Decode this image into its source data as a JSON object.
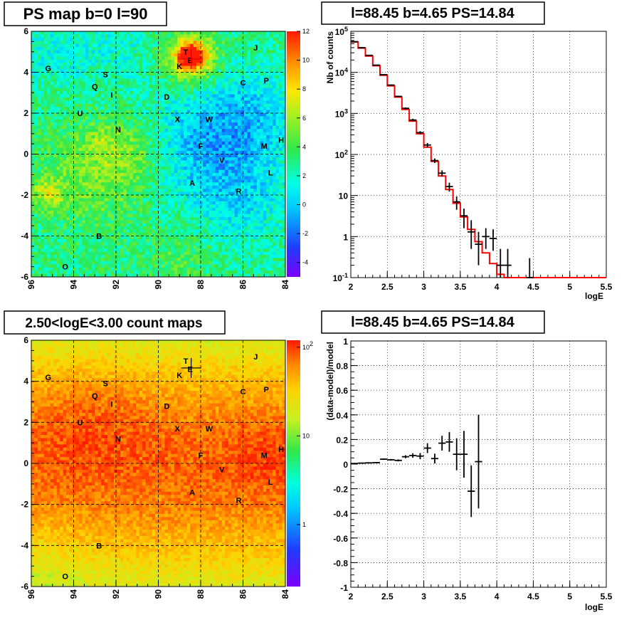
{
  "chart_data": [
    {
      "id": "ps_map",
      "type": "heatmap",
      "title": "PS map b=0 l=90",
      "x_ticks": [
        "96",
        "94",
        "92",
        "90",
        "88",
        "86",
        "84"
      ],
      "y_ticks": [
        "6",
        "4",
        "2",
        "0",
        "-2",
        "-4",
        "-6"
      ],
      "xlim": [
        96,
        84
      ],
      "ylim": [
        -6,
        6
      ],
      "z_ticks": [
        "12",
        "10",
        "8",
        "6",
        "4",
        "2",
        "0",
        "-2",
        "-4"
      ],
      "zlim": [
        -5,
        12
      ],
      "grid": true,
      "marker": {
        "l": 88.45,
        "b": 4.65
      },
      "sources": [
        {
          "name": "T",
          "l": 88.7,
          "b": 5.0
        },
        {
          "name": "E",
          "l": 88.5,
          "b": 4.6
        },
        {
          "name": "J",
          "l": 85.4,
          "b": 5.2
        },
        {
          "name": "K",
          "l": 89.0,
          "b": 4.3
        },
        {
          "name": "G",
          "l": 95.2,
          "b": 4.2
        },
        {
          "name": "S",
          "l": 92.5,
          "b": 3.9
        },
        {
          "name": "C",
          "l": 86.0,
          "b": 3.5
        },
        {
          "name": "P",
          "l": 84.9,
          "b": 3.6
        },
        {
          "name": "Q",
          "l": 93.0,
          "b": 3.3
        },
        {
          "name": "I",
          "l": 92.2,
          "b": 2.9
        },
        {
          "name": "D",
          "l": 89.6,
          "b": 2.8
        },
        {
          "name": "U",
          "l": 93.7,
          "b": 2.0
        },
        {
          "name": "X",
          "l": 89.1,
          "b": 1.7
        },
        {
          "name": "W",
          "l": 87.6,
          "b": 1.7
        },
        {
          "name": "N",
          "l": 91.9,
          "b": 1.2
        },
        {
          "name": "H",
          "l": 84.2,
          "b": 0.7
        },
        {
          "name": "F",
          "l": 88.0,
          "b": 0.4
        },
        {
          "name": "M",
          "l": 85.0,
          "b": 0.4
        },
        {
          "name": "V",
          "l": 87.0,
          "b": -0.3
        },
        {
          "name": "L",
          "l": 84.7,
          "b": -0.9
        },
        {
          "name": "A",
          "l": 88.4,
          "b": -1.4
        },
        {
          "name": "R",
          "l": 86.2,
          "b": -1.8
        },
        {
          "name": "B",
          "l": 92.8,
          "b": -4.0
        },
        {
          "name": "O",
          "l": 94.4,
          "b": -5.5
        }
      ]
    },
    {
      "id": "spectrum",
      "type": "line",
      "title": "l=88.45 b=4.65 PS=14.84",
      "xlabel": "logE",
      "ylabel": "Nb of counts",
      "xlim": [
        2,
        5.5
      ],
      "ylim": [
        0.1,
        100000
      ],
      "yscale": "log",
      "grid": true,
      "x_ticks": [
        "2",
        "2.5",
        "3",
        "3.5",
        "4",
        "4.5",
        "5",
        "5.5"
      ],
      "y_ticks": [
        "10^-1",
        "1",
        "10",
        "10^2",
        "10^3",
        "10^4",
        "10^5"
      ],
      "bin_edges": [
        2.0,
        2.1,
        2.2,
        2.3,
        2.4,
        2.5,
        2.6,
        2.7,
        2.8,
        2.9,
        3.0,
        3.1,
        3.2,
        3.3,
        3.4,
        3.5,
        3.6,
        3.7,
        3.8,
        3.9,
        4.0,
        4.1,
        4.2,
        4.3,
        4.4,
        4.5,
        4.6,
        4.7,
        4.8,
        4.9,
        5.0,
        5.1,
        5.2,
        5.3,
        5.4,
        5.5
      ],
      "model": [
        55000,
        39000,
        25000,
        14500,
        8500,
        4700,
        2500,
        1250,
        650,
        320,
        150,
        68,
        30,
        14,
        6.5,
        3.0,
        1.5,
        0.75,
        0.4,
        0.22,
        0.12,
        0.1,
        0.1,
        0.1,
        0.1,
        0.1,
        0.1,
        0.1,
        0.1,
        0.1,
        0.1,
        0.1,
        0.1,
        0.1,
        0.1
      ],
      "data_points": [
        {
          "x": 2.05,
          "y": 56000,
          "lo": 55000,
          "hi": 57000
        },
        {
          "x": 2.15,
          "y": 40000,
          "lo": 39300,
          "hi": 40700
        },
        {
          "x": 2.25,
          "y": 26000,
          "lo": 25500,
          "hi": 26500
        },
        {
          "x": 2.35,
          "y": 15000,
          "lo": 14700,
          "hi": 15300
        },
        {
          "x": 2.45,
          "y": 8800,
          "lo": 8600,
          "hi": 9000
        },
        {
          "x": 2.55,
          "y": 4900,
          "lo": 4750,
          "hi": 5050
        },
        {
          "x": 2.65,
          "y": 2600,
          "lo": 2500,
          "hi": 2700
        },
        {
          "x": 2.75,
          "y": 1330,
          "lo": 1260,
          "hi": 1400
        },
        {
          "x": 2.85,
          "y": 690,
          "lo": 640,
          "hi": 740
        },
        {
          "x": 2.95,
          "y": 340,
          "lo": 310,
          "hi": 370
        },
        {
          "x": 3.05,
          "y": 170,
          "lo": 150,
          "hi": 190
        },
        {
          "x": 3.15,
          "y": 71,
          "lo": 62,
          "hi": 80
        },
        {
          "x": 3.25,
          "y": 35,
          "lo": 29,
          "hi": 41
        },
        {
          "x": 3.35,
          "y": 16.5,
          "lo": 12.5,
          "hi": 20.5
        },
        {
          "x": 3.45,
          "y": 7,
          "lo": 4.5,
          "hi": 9.5
        },
        {
          "x": 3.55,
          "y": 3.2,
          "lo": 1.6,
          "hi": 4.8
        },
        {
          "x": 3.65,
          "y": 1.3,
          "lo": 0.5,
          "hi": 2.5
        },
        {
          "x": 3.75,
          "y": 0.65,
          "lo": 0.2,
          "hi": 1.3
        },
        {
          "x": 3.85,
          "y": 1.0,
          "lo": 0.5,
          "hi": 1.6
        },
        {
          "x": 3.95,
          "y": 0.9,
          "lo": 0.45,
          "hi": 1.5
        },
        {
          "x": 4.05,
          "y": 0.2,
          "lo": 0.1,
          "hi": 0.5
        },
        {
          "x": 4.15,
          "y": 0.2,
          "lo": 0.1,
          "hi": 0.5
        },
        {
          "x": 4.45,
          "y": 0.1,
          "lo": 0.1,
          "hi": 0.3
        }
      ]
    },
    {
      "id": "count_map",
      "type": "heatmap",
      "title": "2.50<logE<3.00 count maps",
      "x_ticks": [
        "96",
        "94",
        "92",
        "90",
        "88",
        "86",
        "84"
      ],
      "y_ticks": [
        "6",
        "4",
        "2",
        "0",
        "-2",
        "-4",
        "-6"
      ],
      "xlim": [
        96,
        84
      ],
      "ylim": [
        -6,
        6
      ],
      "z_ticks": [
        "10^2",
        "10",
        "1"
      ],
      "zscale": "log",
      "zlim": [
        0.2,
        120
      ],
      "grid": true,
      "marker": {
        "l": 88.45,
        "b": 4.65
      }
    },
    {
      "id": "residuals",
      "type": "scatter",
      "title": "l=88.45 b=4.65 PS=14.84",
      "xlabel": "logE",
      "ylabel": "(data-model)/model",
      "xlim": [
        2,
        5.5
      ],
      "ylim": [
        -1,
        1
      ],
      "grid": true,
      "x_ticks": [
        "2",
        "2.5",
        "3",
        "3.5",
        "4",
        "4.5",
        "5",
        "5.5"
      ],
      "y_ticks": [
        "1",
        "0.8",
        "0.6",
        "0.4",
        "0.2",
        "0",
        "-0.2",
        "-0.4",
        "-0.6",
        "-0.8",
        "-1"
      ],
      "data_points": [
        {
          "x": 2.05,
          "y": 0.005,
          "err": 0.003
        },
        {
          "x": 2.15,
          "y": 0.008,
          "err": 0.004
        },
        {
          "x": 2.25,
          "y": 0.01,
          "err": 0.005
        },
        {
          "x": 2.35,
          "y": 0.012,
          "err": 0.005
        },
        {
          "x": 2.45,
          "y": 0.04,
          "err": 0.006
        },
        {
          "x": 2.55,
          "y": 0.035,
          "err": 0.007
        },
        {
          "x": 2.65,
          "y": 0.03,
          "err": 0.008
        },
        {
          "x": 2.75,
          "y": 0.06,
          "err": 0.012
        },
        {
          "x": 2.85,
          "y": 0.07,
          "err": 0.018
        },
        {
          "x": 2.95,
          "y": 0.065,
          "err": 0.025
        },
        {
          "x": 3.05,
          "y": 0.13,
          "err": 0.04
        },
        {
          "x": 3.15,
          "y": 0.045,
          "err": 0.04
        },
        {
          "x": 3.25,
          "y": 0.17,
          "err": 0.06
        },
        {
          "x": 3.35,
          "y": 0.18,
          "err": 0.08
        },
        {
          "x": 3.45,
          "y": 0.08,
          "err": 0.13
        },
        {
          "x": 3.55,
          "y": 0.08,
          "err": 0.19
        },
        {
          "x": 3.65,
          "y": -0.22,
          "err": 0.21
        },
        {
          "x": 3.75,
          "y": 0.02,
          "err": 0.38
        }
      ]
    }
  ],
  "colors": {
    "model_line": "#ff0000",
    "data": "#000000",
    "grid": "#000000"
  }
}
